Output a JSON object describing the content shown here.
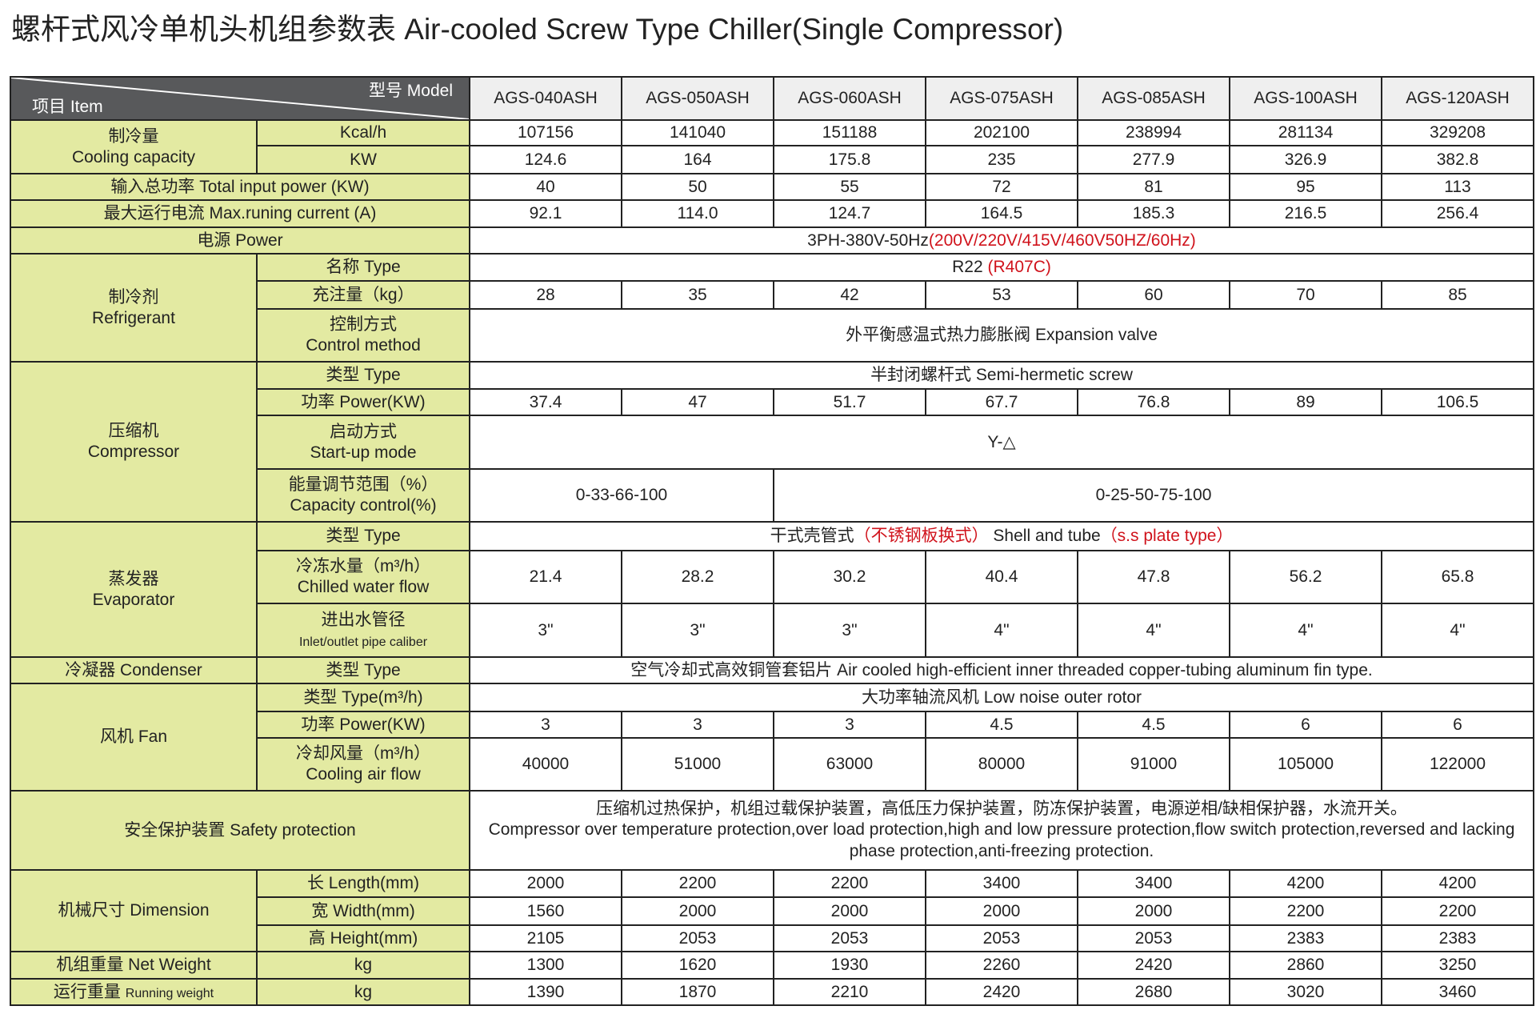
{
  "title": "螺杆式风冷单机头机组参数表 Air-cooled Screw Type Chiller(Single Compressor)",
  "colors": {
    "label_bg": "#e3eaa2",
    "header_bg": "#58595b",
    "model_bg": "#efefef",
    "highlight": "#d0121b"
  },
  "header": {
    "model": "型号  Model",
    "item": "项目  Item",
    "models": [
      "AGS-040ASH",
      "AGS-050ASH",
      "AGS-060ASH",
      "AGS-075ASH",
      "AGS-085ASH",
      "AGS-100ASH",
      "AGS-120ASH"
    ]
  },
  "cooling": {
    "label_cn": "制冷量",
    "label_en": "Cooling capacity",
    "kcal_unit": "Kcal/h",
    "kcal": [
      "107156",
      "141040",
      "151188",
      "202100",
      "238994",
      "281134",
      "329208"
    ],
    "kw_unit": "KW",
    "kw": [
      "124.6",
      "164",
      "175.8",
      "235",
      "277.9",
      "326.9",
      "382.8"
    ]
  },
  "input_power": {
    "label": "输入总功率  Total input power (KW)",
    "values": [
      "40",
      "50",
      "55",
      "72",
      "81",
      "95",
      "113"
    ]
  },
  "max_current": {
    "label": "最大运行电流  Max.runing current (A)",
    "values": [
      "92.1",
      "114.0",
      "124.7",
      "164.5",
      "185.3",
      "216.5",
      "256.4"
    ]
  },
  "power": {
    "label": "电源  Power",
    "value": "3PH-380V-50Hz",
    "value_alt": "(200V/220V/415V/460V50HZ/60Hz)"
  },
  "refrigerant": {
    "label_cn": "制冷剂",
    "label_en": "Refrigerant",
    "type_label": "名称  Type",
    "type_value": "R22 ",
    "type_alt": "(R407C)",
    "charge_label": "充注量（kg）",
    "charge": [
      "28",
      "35",
      "42",
      "53",
      "60",
      "70",
      "85"
    ],
    "control_label_cn": "控制方式",
    "control_label_en": "Control method",
    "control_value": "外平衡感温式热力膨胀阀  Expansion valve"
  },
  "compressor": {
    "label_cn": "压缩机",
    "label_en": "Compressor",
    "type_label": "类型  Type",
    "type_value": "半封闭螺杆式  Semi-hermetic screw",
    "power_label": "功率  Power(KW)",
    "power": [
      "37.4",
      "47",
      "51.7",
      "67.7",
      "76.8",
      "89",
      "106.5"
    ],
    "startup_label_cn": "启动方式",
    "startup_label_en": "Start-up mode",
    "startup_value": "Y-△",
    "capacity_label_cn": "能量调节范围（%）",
    "capacity_label_en": "Capacity control(%)",
    "capacity_first": "0-33-66-100",
    "capacity_rest": "0-25-50-75-100"
  },
  "evaporator": {
    "label_cn": "蒸发器",
    "label_en": "Evaporator",
    "type_label": "类型  Type",
    "type_value_cn": "干式壳管式",
    "type_alt_cn": "（不锈钢板换式）",
    "type_value_en": "  Shell and tube",
    "type_alt_en": "（s.s plate type）",
    "flow_label_cn": "冷冻水量（m³/h）",
    "flow_label_en": "Chilled water flow",
    "flow": [
      "21.4",
      "28.2",
      "30.2",
      "40.4",
      "47.8",
      "56.2",
      "65.8"
    ],
    "pipe_label_cn": "进出水管径",
    "pipe_label_en": "Inlet/outlet pipe caliber",
    "pipe": [
      "3\"",
      "3\"",
      "3\"",
      "4\"",
      "4\"",
      "4\"",
      "4\""
    ]
  },
  "condenser": {
    "label": "冷凝器  Condenser",
    "type_label": "类型  Type",
    "type_value": "空气冷却式高效铜管套铝片  Air cooled high-efficient inner threaded copper-tubing aluminum fin type."
  },
  "fan": {
    "label": "风机  Fan",
    "type_label": "类型  Type(m³/h)",
    "type_value": "大功率轴流风机  Low noise outer rotor",
    "power_label": "功率  Power(KW)",
    "power": [
      "3",
      "3",
      "3",
      "4.5",
      "4.5",
      "6",
      "6"
    ],
    "air_label_cn": "冷却风量（m³/h）",
    "air_label_en": "Cooling air flow",
    "air": [
      "40000",
      "51000",
      "63000",
      "80000",
      "91000",
      "105000",
      "122000"
    ]
  },
  "safety": {
    "label": "安全保护装置  Safety protection",
    "line1": "压缩机过热保护，机组过载保护装置，高低压力保护装置，防冻保护装置，电源逆相/缺相保护器，水流开关。",
    "line2": "Compressor over temperature protection,over load protection,high and low pressure protection,flow switch protection,reversed and lacking phase protection,anti-freezing protection."
  },
  "dimension": {
    "label": "机械尺寸  Dimension",
    "length_label": "长  Length(mm)",
    "length": [
      "2000",
      "2200",
      "2200",
      "3400",
      "3400",
      "4200",
      "4200"
    ],
    "width_label": "宽  Width(mm)",
    "width": [
      "1560",
      "2000",
      "2000",
      "2000",
      "2000",
      "2200",
      "2200"
    ],
    "height_label": "高  Height(mm)",
    "height": [
      "2105",
      "2053",
      "2053",
      "2053",
      "2053",
      "2383",
      "2383"
    ]
  },
  "net_weight": {
    "label": "机组重量  Net Weight",
    "unit": "kg",
    "values": [
      "1300",
      "1620",
      "1930",
      "2260",
      "2420",
      "2860",
      "3250"
    ]
  },
  "running_weight": {
    "label_cn": "运行重量 ",
    "label_en": "Running weight",
    "unit": "kg",
    "values": [
      "1390",
      "1870",
      "2210",
      "2420",
      "2680",
      "3020",
      "3460"
    ]
  }
}
